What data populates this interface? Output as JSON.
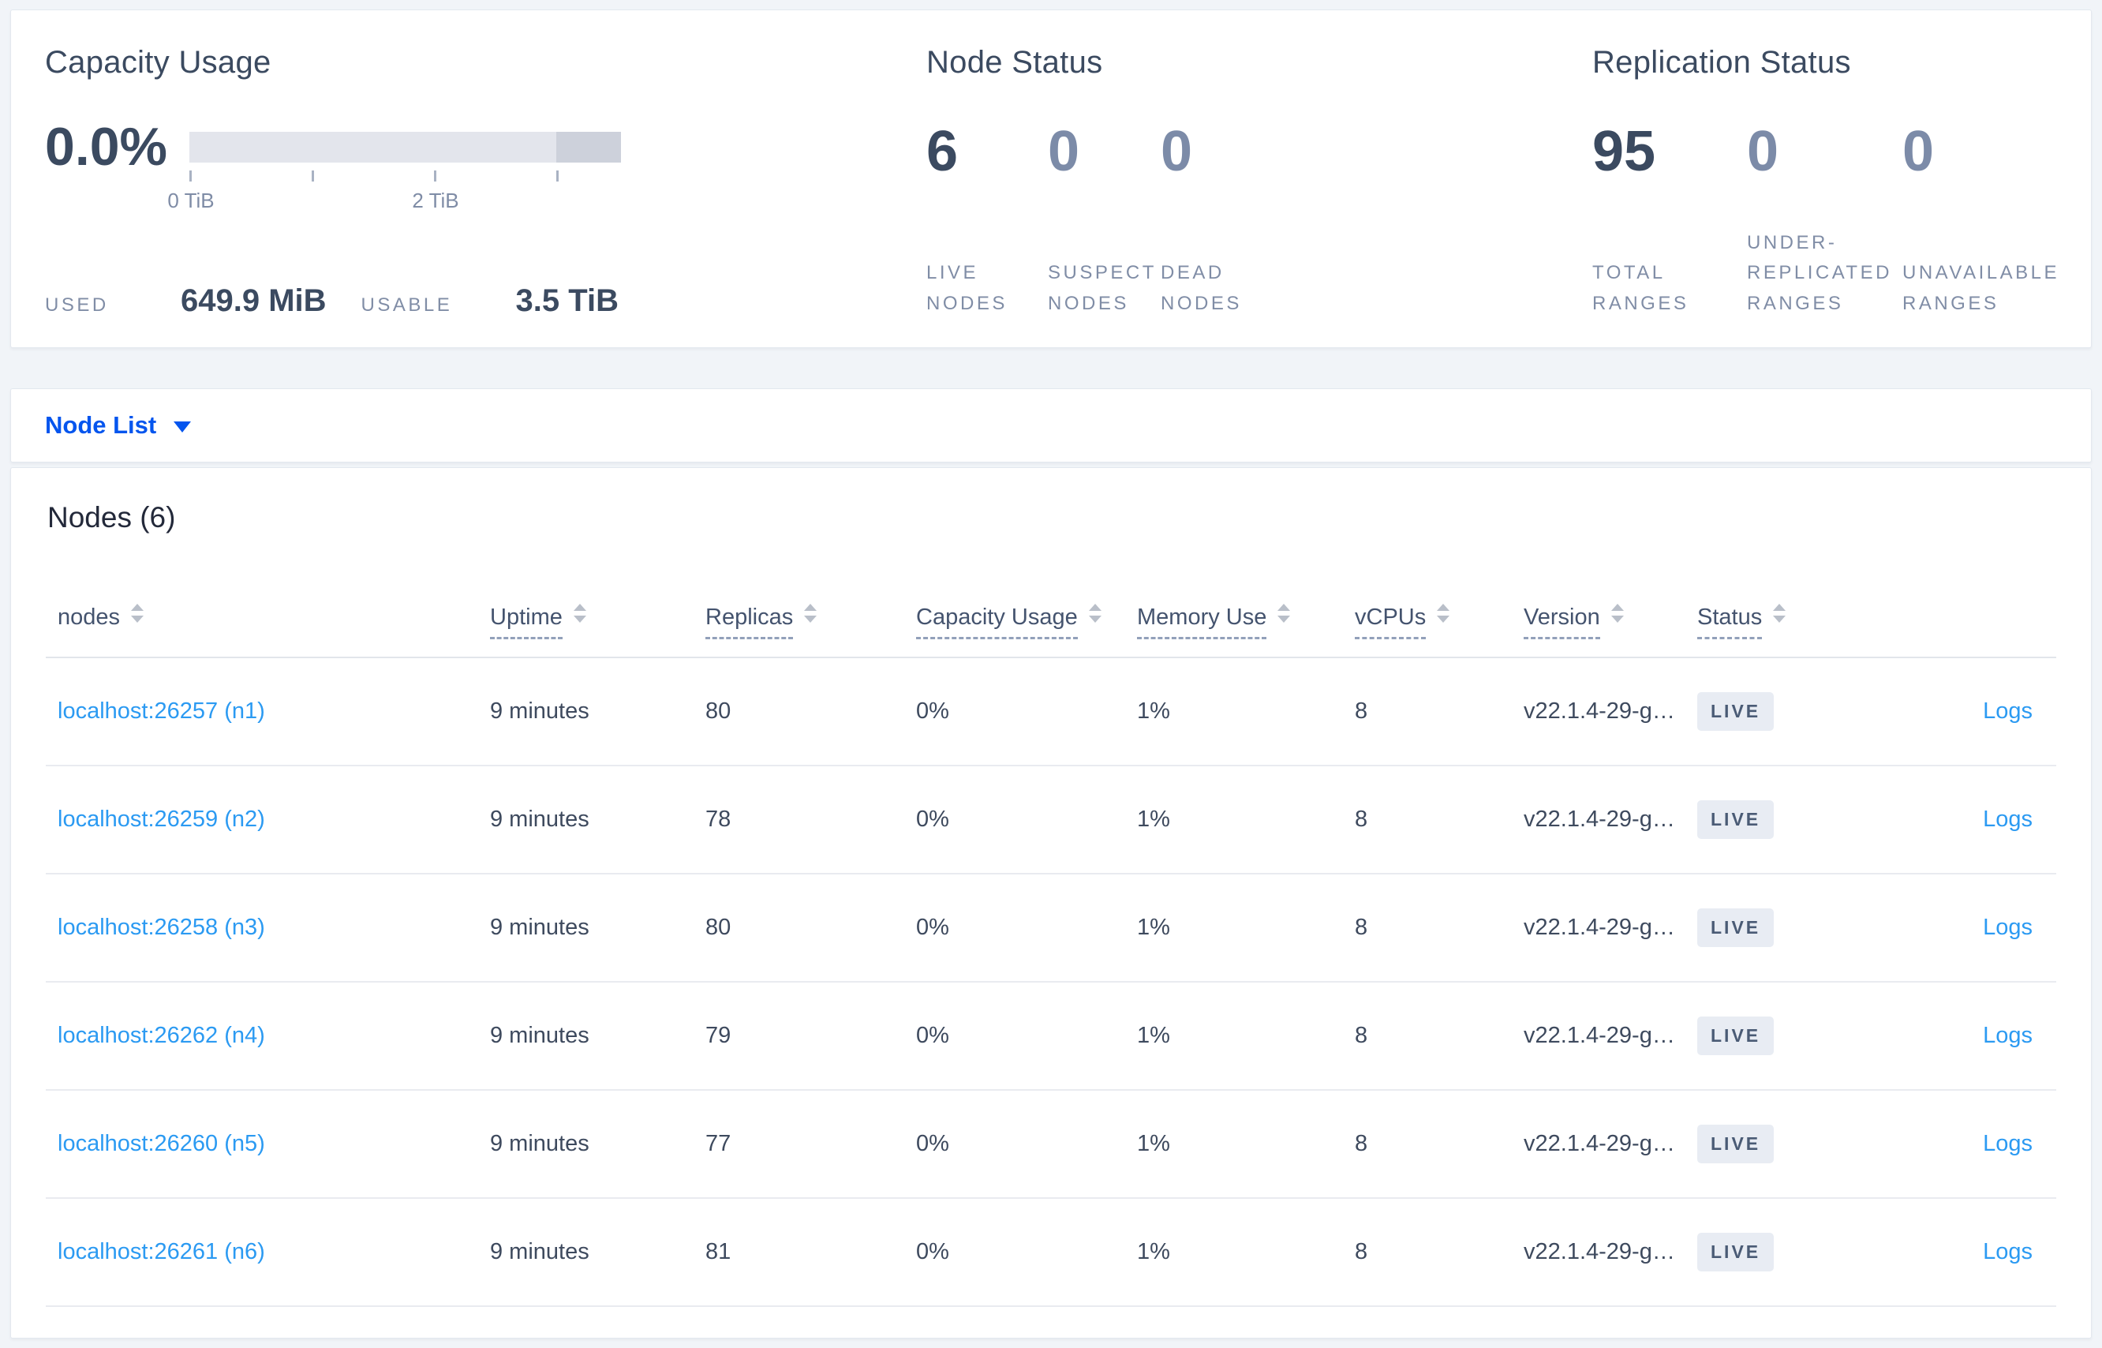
{
  "summary": {
    "capacity": {
      "title": "Capacity Usage",
      "percent": "0.0%",
      "tick_labels": [
        "0 TiB",
        "2 TiB"
      ],
      "used_label": "USED",
      "used_value": "649.9 MiB",
      "usable_label": "USABLE",
      "usable_value": "3.5 TiB"
    },
    "node_status": {
      "title": "Node Status",
      "stats": [
        {
          "value": "6",
          "label": "LIVE NODES"
        },
        {
          "value": "0",
          "label": "SUSPECT NODES"
        },
        {
          "value": "0",
          "label": "DEAD NODES"
        }
      ]
    },
    "replication_status": {
      "title": "Replication Status",
      "stats": [
        {
          "value": "95",
          "label": "TOTAL RANGES"
        },
        {
          "value": "0",
          "label": "UNDER-REPLICATED RANGES"
        },
        {
          "value": "0",
          "label": "UNAVAILABLE RANGES"
        }
      ]
    }
  },
  "view_selector": {
    "selected": "Node List"
  },
  "nodes_table": {
    "title": "Nodes (6)",
    "columns": [
      "nodes",
      "Uptime",
      "Replicas",
      "Capacity Usage",
      "Memory Use",
      "vCPUs",
      "Version",
      "Status"
    ],
    "rows": [
      {
        "node": "localhost:26257 (n1)",
        "uptime": "9 minutes",
        "replicas": "80",
        "capacity": "0%",
        "memory": "1%",
        "vcpus": "8",
        "version": "v22.1.4-29-g…",
        "status": "LIVE",
        "logs": "Logs"
      },
      {
        "node": "localhost:26259 (n2)",
        "uptime": "9 minutes",
        "replicas": "78",
        "capacity": "0%",
        "memory": "1%",
        "vcpus": "8",
        "version": "v22.1.4-29-g…",
        "status": "LIVE",
        "logs": "Logs"
      },
      {
        "node": "localhost:26258 (n3)",
        "uptime": "9 minutes",
        "replicas": "80",
        "capacity": "0%",
        "memory": "1%",
        "vcpus": "8",
        "version": "v22.1.4-29-g…",
        "status": "LIVE",
        "logs": "Logs"
      },
      {
        "node": "localhost:26262 (n4)",
        "uptime": "9 minutes",
        "replicas": "79",
        "capacity": "0%",
        "memory": "1%",
        "vcpus": "8",
        "version": "v22.1.4-29-g…",
        "status": "LIVE",
        "logs": "Logs"
      },
      {
        "node": "localhost:26260 (n5)",
        "uptime": "9 minutes",
        "replicas": "77",
        "capacity": "0%",
        "memory": "1%",
        "vcpus": "8",
        "version": "v22.1.4-29-g…",
        "status": "LIVE",
        "logs": "Logs"
      },
      {
        "node": "localhost:26261 (n6)",
        "uptime": "9 minutes",
        "replicas": "81",
        "capacity": "0%",
        "memory": "1%",
        "vcpus": "8",
        "version": "v22.1.4-29-g…",
        "status": "LIVE",
        "logs": "Logs"
      }
    ]
  },
  "colors": {
    "accent_blue": "#0455ee",
    "link_blue": "#2b9af2",
    "badge_bg": "#e8ecf3",
    "badge_text": "#4a5b75",
    "bar_track": "#e3e5ec",
    "bar_end_segment": "#cdd1db"
  }
}
